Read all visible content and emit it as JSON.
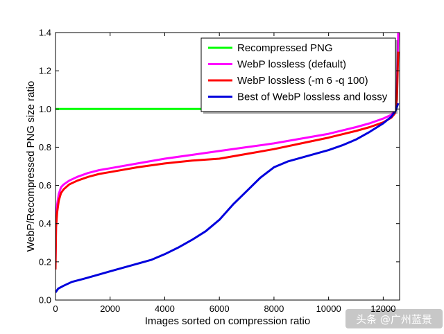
{
  "chart_data": {
    "type": "line",
    "xlabel": "Images sorted on compression ratio",
    "ylabel": "WebP/Recompressed PNG size ratio",
    "xlim": [
      0,
      12600
    ],
    "ylim": [
      0,
      1.4
    ],
    "x_ticks": [
      0,
      2000,
      4000,
      6000,
      8000,
      10000,
      12000
    ],
    "y_ticks": [
      0.0,
      0.2,
      0.4,
      0.6,
      0.8,
      1.0,
      1.2,
      1.4
    ],
    "x_tick_labels": [
      "0",
      "2000",
      "4000",
      "6000",
      "8000",
      "10000",
      "12000"
    ],
    "y_tick_labels": [
      "0.0",
      "0.2",
      "0.4",
      "0.6",
      "0.8",
      "1.0",
      "1.2",
      "1.4"
    ],
    "grid": false,
    "legend_position": "top-right",
    "series": [
      {
        "name": "Recompressed PNG",
        "color": "#00ff00",
        "x": [
          0,
          12500
        ],
        "y": [
          1.0,
          1.0
        ]
      },
      {
        "name": "WebP lossless (default)",
        "color": "#ff00ff",
        "x": [
          0,
          20,
          60,
          120,
          200,
          300,
          500,
          800,
          1200,
          1600,
          2000,
          3000,
          4000,
          5000,
          6000,
          7000,
          8000,
          9000,
          10000,
          11000,
          11500,
          12000,
          12300,
          12420,
          12500,
          12550
        ],
        "y": [
          0.2,
          0.42,
          0.5,
          0.555,
          0.59,
          0.605,
          0.625,
          0.645,
          0.665,
          0.68,
          0.69,
          0.715,
          0.74,
          0.76,
          0.78,
          0.8,
          0.82,
          0.845,
          0.87,
          0.905,
          0.925,
          0.95,
          0.97,
          0.99,
          1.1,
          1.4
        ]
      },
      {
        "name": "WebP lossless (-m 6 -q 100)",
        "color": "#ff0000",
        "x": [
          0,
          20,
          60,
          120,
          200,
          300,
          500,
          800,
          1200,
          1600,
          2000,
          3000,
          4000,
          5000,
          6000,
          7000,
          8000,
          9000,
          10000,
          11000,
          11500,
          12000,
          12300,
          12420,
          12500,
          12550
        ],
        "y": [
          0.16,
          0.38,
          0.46,
          0.52,
          0.56,
          0.58,
          0.605,
          0.625,
          0.645,
          0.66,
          0.67,
          0.695,
          0.715,
          0.73,
          0.74,
          0.765,
          0.79,
          0.82,
          0.85,
          0.885,
          0.905,
          0.93,
          0.955,
          0.975,
          1.05,
          1.3
        ]
      },
      {
        "name": "Best of WebP lossless and lossy",
        "color": "#0000dd",
        "x": [
          0,
          100,
          300,
          600,
          1000,
          1500,
          2000,
          2500,
          3000,
          3500,
          4000,
          4500,
          5000,
          5500,
          6000,
          6500,
          7000,
          7500,
          8000,
          8500,
          9000,
          9500,
          10000,
          10500,
          11000,
          11500,
          12000,
          12300,
          12450,
          12550
        ],
        "y": [
          0.04,
          0.06,
          0.075,
          0.095,
          0.11,
          0.13,
          0.15,
          0.17,
          0.19,
          0.21,
          0.24,
          0.275,
          0.315,
          0.36,
          0.42,
          0.5,
          0.57,
          0.64,
          0.695,
          0.725,
          0.745,
          0.765,
          0.785,
          0.81,
          0.84,
          0.88,
          0.925,
          0.96,
          0.99,
          1.03
        ]
      }
    ]
  },
  "watermark": {
    "text": "头条 @广州蓝景"
  }
}
